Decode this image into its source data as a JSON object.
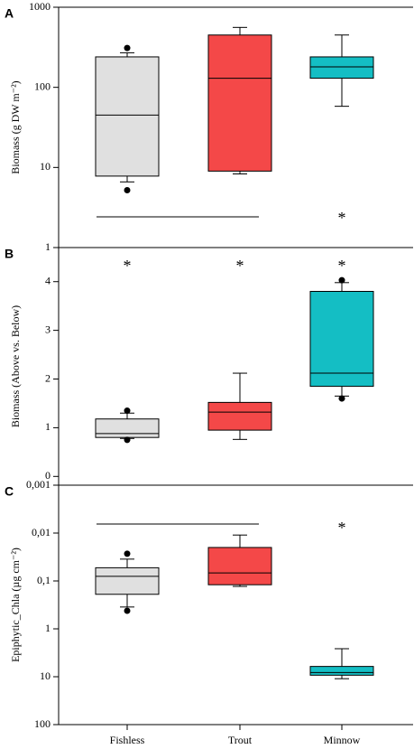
{
  "categories": [
    "Fishless",
    "Trout",
    "Minnow"
  ],
  "chart_data": [
    {
      "type": "box",
      "panel_label": "A",
      "ylabel": "Biomass (g DW m⁻²)",
      "log_scale": true,
      "ylim": [
        1,
        1000
      ],
      "yticks": [
        1,
        10,
        100,
        1000
      ],
      "boxes": [
        {
          "color": "#e0e0e0",
          "whisker_low": 6.6,
          "q1": 7.8,
          "median": 45,
          "q3": 240,
          "whisker_high": 270,
          "outliers": [
            5.2,
            310
          ]
        },
        {
          "color": "#f44848",
          "whisker_low": 8.3,
          "q1": 9,
          "median": 130,
          "q3": 450,
          "whisker_high": 560,
          "outliers": []
        },
        {
          "color": "#14bec4",
          "whisker_low": 58,
          "q1": 130,
          "median": 180,
          "q3": 240,
          "whisker_high": 450,
          "outliers": []
        }
      ],
      "stars": [
        null,
        null,
        "*"
      ]
    },
    {
      "type": "box",
      "panel_label": "B",
      "ylabel": "Biomass (Above vs. Below)",
      "log_scale": false,
      "ylim": [
        -0.18,
        4.7
      ],
      "yticks": [
        0,
        1,
        2,
        3,
        4
      ],
      "boxes": [
        {
          "color": "#e0e0e0",
          "whisker_low": 0.78,
          "q1": 0.8,
          "median": 0.88,
          "q3": 1.18,
          "whisker_high": 1.3,
          "outliers": [
            0.75,
            1.35
          ]
        },
        {
          "color": "#f44848",
          "whisker_low": 0.76,
          "q1": 0.95,
          "median": 1.32,
          "q3": 1.52,
          "whisker_high": 2.12,
          "outliers": []
        },
        {
          "color": "#14bec4",
          "whisker_low": 1.65,
          "q1": 1.85,
          "median": 2.12,
          "q3": 3.8,
          "whisker_high": 3.98,
          "outliers": [
            1.6,
            4.03
          ]
        }
      ],
      "stars": [
        "*",
        "*",
        "*"
      ]
    },
    {
      "type": "box",
      "panel_label": "C",
      "ylabel": "Epiphytic_Chla (µg cm⁻²)",
      "log_scale": true,
      "inverted": true,
      "ylim": [
        0.001,
        100
      ],
      "yticks": [
        {
          "value": 0.001,
          "label": "0,001"
        },
        {
          "value": 0.01,
          "label": "0,01"
        },
        {
          "value": 0.1,
          "label": "0,1"
        },
        1,
        10,
        100
      ],
      "boxes": [
        {
          "color": "#e0e0e0",
          "whisker_low": 0.035,
          "q1": 0.053,
          "median": 0.08,
          "q3": 0.19,
          "whisker_high": 0.35,
          "outliers": [
            0.027,
            0.42
          ]
        },
        {
          "color": "#f44848",
          "whisker_low": 0.011,
          "q1": 0.02,
          "median": 0.068,
          "q3": 0.12,
          "whisker_high": 0.13,
          "outliers": []
        },
        {
          "color": "#14bec4",
          "whisker_low": 2.6,
          "q1": 6.1,
          "median": 8.2,
          "q3": 9.3,
          "whisker_high": 11,
          "outliers": []
        }
      ],
      "stars": [
        null,
        null,
        "*"
      ]
    }
  ]
}
